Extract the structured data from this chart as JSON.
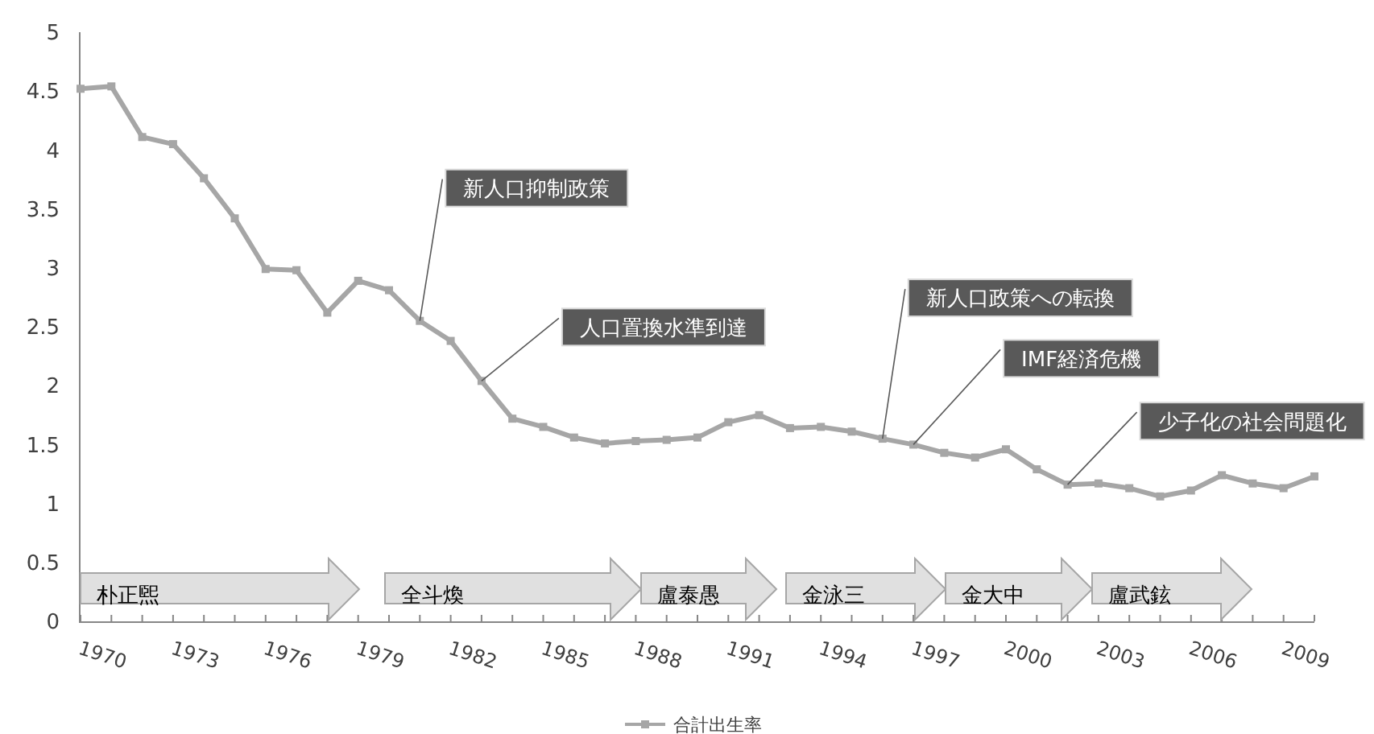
{
  "chart_data": {
    "type": "line",
    "x": [
      1970,
      1971,
      1972,
      1973,
      1974,
      1975,
      1976,
      1977,
      1978,
      1979,
      1980,
      1981,
      1982,
      1983,
      1984,
      1985,
      1986,
      1987,
      1988,
      1989,
      1990,
      1991,
      1992,
      1993,
      1994,
      1995,
      1996,
      1997,
      1998,
      1999,
      2000,
      2001,
      2002,
      2003,
      2004,
      2005,
      2006,
      2007,
      2008,
      2009,
      2010
    ],
    "series": [
      {
        "name": "合計出生率",
        "color": "#a6a6a6",
        "values": [
          4.52,
          4.54,
          4.11,
          4.05,
          3.76,
          3.42,
          2.99,
          2.98,
          2.62,
          2.89,
          2.81,
          2.55,
          2.38,
          2.04,
          1.72,
          1.65,
          1.56,
          1.51,
          1.53,
          1.54,
          1.56,
          1.69,
          1.75,
          1.64,
          1.65,
          1.61,
          1.55,
          1.5,
          1.43,
          1.39,
          1.46,
          1.29,
          1.16,
          1.17,
          1.13,
          1.06,
          1.11,
          1.24,
          1.17,
          1.13,
          1.23
        ]
      }
    ],
    "xlim": [
      1970,
      2010
    ],
    "xticks": [
      1970,
      {
        "value": 1971,
        "label": null
      },
      {
        "value": 1972,
        "label": null
      },
      1973,
      {
        "value": 1974,
        "label": null
      },
      {
        "value": 1975,
        "label": null
      },
      1976,
      {
        "value": 1977,
        "label": null
      },
      {
        "value": 1978,
        "label": null
      },
      1979,
      {
        "value": 1980,
        "label": null
      },
      {
        "value": 1981,
        "label": null
      },
      1982,
      {
        "value": 1983,
        "label": null
      },
      {
        "value": 1984,
        "label": null
      },
      1985,
      {
        "value": 1986,
        "label": null
      },
      {
        "value": 1987,
        "label": null
      },
      1988,
      {
        "value": 1989,
        "label": null
      },
      {
        "value": 1990,
        "label": null
      },
      1991,
      {
        "value": 1992,
        "label": null
      },
      {
        "value": 1993,
        "label": null
      },
      1994,
      {
        "value": 1995,
        "label": null
      },
      {
        "value": 1996,
        "label": null
      },
      1997,
      {
        "value": 1998,
        "label": null
      },
      {
        "value": 1999,
        "label": null
      },
      2000,
      {
        "value": 2001,
        "label": null
      },
      {
        "value": 2002,
        "label": null
      },
      2003,
      {
        "value": 2004,
        "label": null
      },
      {
        "value": 2005,
        "label": null
      },
      2006,
      {
        "value": 2007,
        "label": null
      },
      {
        "value": 2008,
        "label": null
      },
      2009,
      {
        "value": 2010,
        "label": null
      }
    ],
    "ylim": [
      0,
      5
    ],
    "yticks": [
      0,
      0.5,
      1,
      1.5,
      2,
      2.5,
      3,
      3.5,
      4,
      4.5,
      5
    ],
    "marker": "square",
    "legend": "bottom",
    "annotations": [
      {
        "text": "新人口抑制政策",
        "x": 1981,
        "y": 2.55
      },
      {
        "text": "人口置換水準到達",
        "x": 1983,
        "y": 2.04
      },
      {
        "text": "新人口政策への転換",
        "x": 1996,
        "y": 1.55
      },
      {
        "text": "IMF経済危機",
        "x": 1997,
        "y": 1.5
      },
      {
        "text": "少子化の社会問題化",
        "x": 2002,
        "y": 1.16
      },
      "朴正煕",
      "全斗煥",
      "盧泰愚",
      "金泳三",
      "金大中",
      "盧武鉉"
    ]
  }
}
